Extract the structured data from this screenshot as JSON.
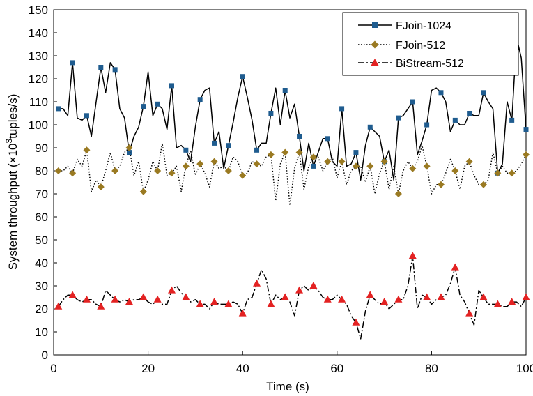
{
  "chart_data": {
    "type": "line",
    "xlabel": "Time (s)",
    "ylabel_prefix": "System throughput (×10",
    "ylabel_sup": "3",
    "ylabel_suffix": "tuples/s)",
    "xlim": [
      0,
      100
    ],
    "ylim": [
      0,
      150
    ],
    "xticks": [
      0,
      20,
      40,
      60,
      80,
      100
    ],
    "yticks": [
      0,
      10,
      20,
      30,
      40,
      50,
      60,
      70,
      80,
      90,
      100,
      110,
      120,
      130,
      140,
      150
    ],
    "grid": false,
    "legend_position": "top-right",
    "marker_every": 3,
    "series": [
      {
        "name": "FJoin-1024",
        "color": "#000000",
        "dash": "solid",
        "marker": "square",
        "marker_color": "#1f5c8f",
        "x": [
          1,
          2,
          3,
          4,
          5,
          6,
          7,
          8,
          9,
          10,
          11,
          12,
          13,
          14,
          15,
          16,
          17,
          18,
          19,
          20,
          21,
          22,
          23,
          24,
          25,
          26,
          27,
          28,
          29,
          30,
          31,
          32,
          33,
          34,
          35,
          36,
          37,
          38,
          39,
          40,
          41,
          42,
          43,
          44,
          45,
          46,
          47,
          48,
          49,
          50,
          51,
          52,
          53,
          54,
          55,
          56,
          57,
          58,
          59,
          60,
          61,
          62,
          63,
          64,
          65,
          66,
          67,
          68,
          69,
          70,
          71,
          72,
          73,
          74,
          75,
          76,
          77,
          78,
          79,
          80,
          81,
          82,
          83,
          84,
          85,
          86,
          87,
          88,
          89,
          90,
          91,
          92,
          93,
          94,
          95,
          96,
          97,
          98,
          99,
          100
        ],
        "values": [
          107,
          107,
          104,
          127,
          103,
          102,
          104,
          95,
          110,
          125,
          114,
          127,
          124,
          107,
          103,
          88,
          95,
          99,
          108,
          123,
          104,
          109,
          107,
          98,
          117,
          90,
          91,
          89,
          84,
          99,
          111,
          115,
          116,
          92,
          97,
          81,
          91,
          101,
          112,
          121,
          112,
          102,
          89,
          92,
          92,
          105,
          116,
          100,
          115,
          103,
          109,
          95,
          80,
          92,
          82,
          88,
          94,
          94,
          84,
          82,
          107,
          82,
          83,
          88,
          76,
          91,
          99,
          97,
          95,
          84,
          89,
          76,
          103,
          104,
          107,
          110,
          87,
          93,
          100,
          115,
          116,
          114,
          110,
          97,
          102,
          100,
          100,
          105,
          104,
          104,
          114,
          110,
          107,
          79,
          83,
          110,
          102,
          138,
          129,
          98
        ]
      },
      {
        "name": "FJoin-512",
        "color": "#000000",
        "dash": "dotted",
        "marker": "diamond",
        "marker_color": "#9a7a22",
        "x": [
          1,
          2,
          3,
          4,
          5,
          6,
          7,
          8,
          9,
          10,
          11,
          12,
          13,
          14,
          15,
          16,
          17,
          18,
          19,
          20,
          21,
          22,
          23,
          24,
          25,
          26,
          27,
          28,
          29,
          30,
          31,
          32,
          33,
          34,
          35,
          36,
          37,
          38,
          39,
          40,
          41,
          42,
          43,
          44,
          45,
          46,
          47,
          48,
          49,
          50,
          51,
          52,
          53,
          54,
          55,
          56,
          57,
          58,
          59,
          60,
          61,
          62,
          63,
          64,
          65,
          66,
          67,
          68,
          69,
          70,
          71,
          72,
          73,
          74,
          75,
          76,
          77,
          78,
          79,
          80,
          81,
          82,
          83,
          84,
          85,
          86,
          87,
          88,
          89,
          90,
          91,
          92,
          93,
          94,
          95,
          96,
          97,
          98,
          99,
          100
        ],
        "values": [
          80,
          80,
          82,
          79,
          85,
          82,
          89,
          71,
          76,
          73,
          80,
          88,
          80,
          82,
          88,
          90,
          78,
          84,
          71,
          76,
          84,
          80,
          92,
          78,
          79,
          82,
          71,
          82,
          89,
          78,
          83,
          79,
          73,
          84,
          81,
          82,
          80,
          86,
          84,
          78,
          79,
          84,
          83,
          82,
          86,
          87,
          67,
          83,
          88,
          65,
          81,
          88,
          72,
          82,
          86,
          86,
          80,
          84,
          86,
          77,
          84,
          74,
          80,
          82,
          82,
          75,
          82,
          70,
          79,
          84,
          72,
          82,
          70,
          80,
          84,
          81,
          84,
          91,
          82,
          70,
          74,
          74,
          79,
          85,
          80,
          72,
          82,
          84,
          78,
          74,
          74,
          76,
          88,
          79,
          82,
          79,
          79,
          80,
          83,
          87
        ]
      },
      {
        "name": "BiStream-512",
        "color": "#000000",
        "dash": "dashdot",
        "marker": "triangle",
        "marker_color": "#e32222",
        "x": [
          1,
          2,
          3,
          4,
          5,
          6,
          7,
          8,
          9,
          10,
          11,
          12,
          13,
          14,
          15,
          16,
          17,
          18,
          19,
          20,
          21,
          22,
          23,
          24,
          25,
          26,
          27,
          28,
          29,
          30,
          31,
          32,
          33,
          34,
          35,
          36,
          37,
          38,
          39,
          40,
          41,
          42,
          43,
          44,
          45,
          46,
          47,
          48,
          49,
          50,
          51,
          52,
          53,
          54,
          55,
          56,
          57,
          58,
          59,
          60,
          61,
          62,
          63,
          64,
          65,
          66,
          67,
          68,
          69,
          70,
          71,
          72,
          73,
          74,
          75,
          76,
          77,
          78,
          79,
          80,
          81,
          82,
          83,
          84,
          85,
          86,
          87,
          88,
          89,
          90,
          91,
          92,
          93,
          94,
          95,
          96,
          97,
          98,
          99,
          100
        ],
        "values": [
          21,
          24,
          26,
          26,
          24,
          23,
          24,
          24,
          22,
          21,
          28,
          26,
          24,
          23,
          24,
          23,
          24,
          24,
          25,
          23,
          22,
          24,
          22,
          22,
          28,
          30,
          27,
          25,
          23,
          24,
          22,
          22,
          20,
          23,
          22,
          22,
          22,
          23,
          22,
          18,
          24,
          25,
          31,
          37,
          33,
          22,
          26,
          24,
          25,
          23,
          17,
          28,
          30,
          28,
          30,
          28,
          25,
          24,
          24,
          26,
          24,
          22,
          17,
          14,
          7,
          19,
          26,
          24,
          22,
          23,
          20,
          22,
          24,
          24,
          30,
          43,
          20,
          26,
          25,
          22,
          24,
          25,
          26,
          31,
          38,
          26,
          23,
          18,
          13,
          28,
          25,
          22,
          22,
          22,
          21,
          21,
          23,
          23,
          21,
          25
        ]
      }
    ]
  }
}
